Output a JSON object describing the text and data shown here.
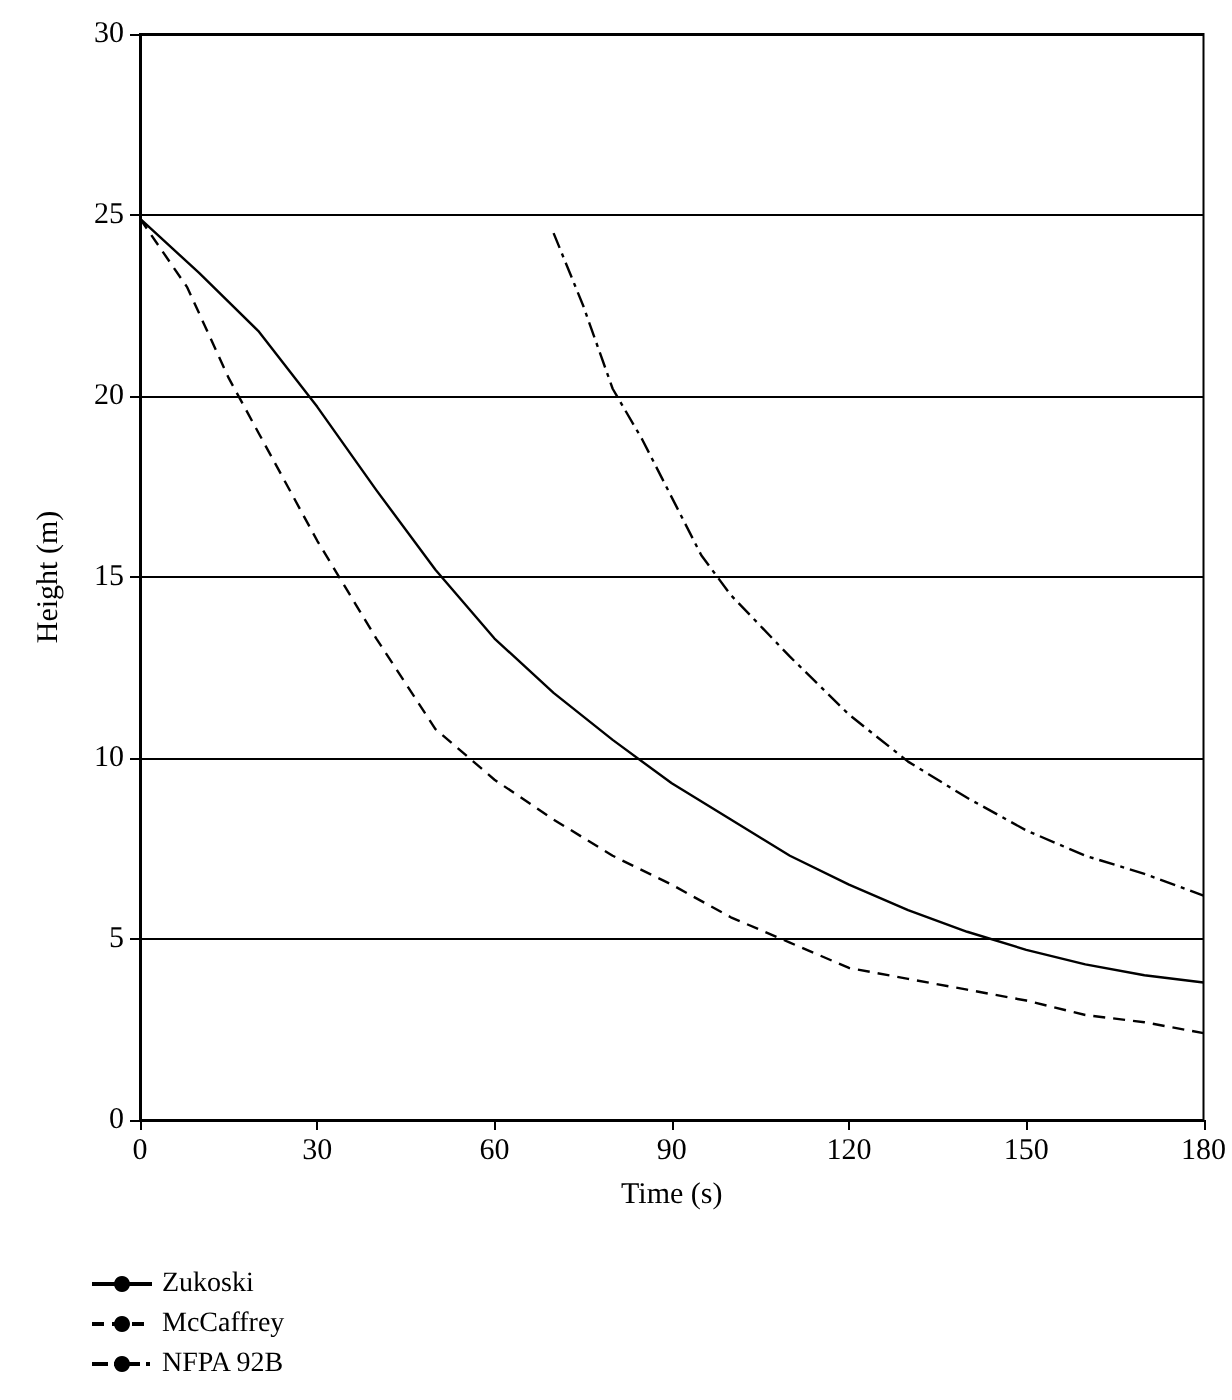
{
  "chart_data": {
    "type": "line",
    "xlabel": "Time (s)",
    "ylabel": "Height (m)",
    "xlim": [
      0,
      180
    ],
    "xticks": [
      0,
      30,
      60,
      90,
      120,
      150,
      180
    ],
    "ylim": [
      0,
      30
    ],
    "yticks": [
      0,
      5,
      10,
      15,
      20,
      25,
      30
    ],
    "grid": "y",
    "legend": "bottom left",
    "marker": "none",
    "series": [
      {
        "name": "Zukoski",
        "color": "#000000",
        "line_style": "solid",
        "x": [
          0,
          10,
          20,
          30,
          40,
          50,
          60,
          70,
          80,
          90,
          100,
          110,
          120,
          130,
          140,
          150,
          160,
          170,
          180
        ],
        "values": [
          24.9,
          23.4,
          21.8,
          19.7,
          17.4,
          15.2,
          13.3,
          11.8,
          10.5,
          9.3,
          8.3,
          7.3,
          6.5,
          5.8,
          5.2,
          4.7,
          4.3,
          4.0,
          3.8
        ]
      },
      {
        "name": "McCaffrey",
        "color": "#000000",
        "line_style": "dashed",
        "x": [
          0,
          8,
          15,
          20,
          30,
          40,
          50,
          60,
          70,
          80,
          90,
          100,
          110,
          120,
          130,
          140,
          150,
          160,
          170,
          180
        ],
        "values": [
          24.9,
          23,
          20.5,
          19,
          16,
          13.3,
          10.8,
          9.4,
          8.3,
          7.3,
          6.5,
          5.6,
          4.9,
          4.2,
          3.9,
          3.6,
          3.3,
          2.9,
          2.7,
          2.4
        ]
      },
      {
        "name": "NFPA 92B",
        "color": "#000000",
        "line_style": "dashed_dotted",
        "x": [
          70,
          75,
          80,
          85,
          90,
          95,
          100,
          110,
          120,
          130,
          140,
          150,
          160,
          170,
          180
        ],
        "values": [
          24.5,
          22.5,
          20.2,
          18.8,
          17.2,
          15.6,
          14.5,
          12.8,
          11.2,
          9.9,
          8.9,
          8.0,
          7.3,
          6.8,
          6.2
        ]
      }
    ]
  }
}
